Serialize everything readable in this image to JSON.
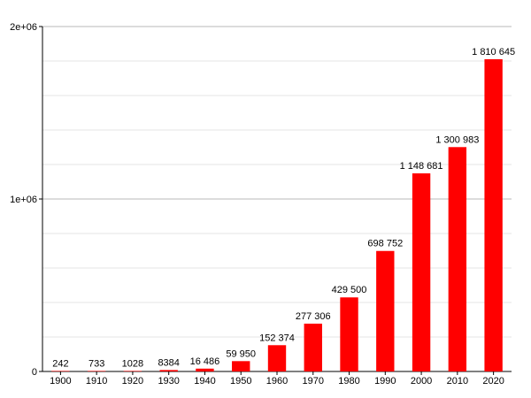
{
  "chart_data": {
    "type": "bar",
    "title": "",
    "xlabel": "",
    "ylabel": "",
    "categories": [
      "1900",
      "1910",
      "1920",
      "1930",
      "1940",
      "1950",
      "1960",
      "1970",
      "1980",
      "1990",
      "2000",
      "2010",
      "2020"
    ],
    "values": [
      242,
      733,
      1028,
      8384,
      16486,
      59950,
      152374,
      277306,
      429500,
      698752,
      1148681,
      1300983,
      1810645
    ],
    "value_labels": [
      "242",
      "733",
      "1028",
      "8384",
      "16 486",
      "59 950",
      "152 374",
      "277 306",
      "429 500",
      "698 752",
      "1 148 681",
      "1 300 983",
      "1 810 645"
    ],
    "ylim": [
      0,
      2000000
    ],
    "yticks": [
      0,
      1000000,
      2000000
    ],
    "ytick_labels": [
      "0",
      "1e+06",
      "2e+06"
    ],
    "grid": true,
    "bar_color": "#ff0000"
  }
}
